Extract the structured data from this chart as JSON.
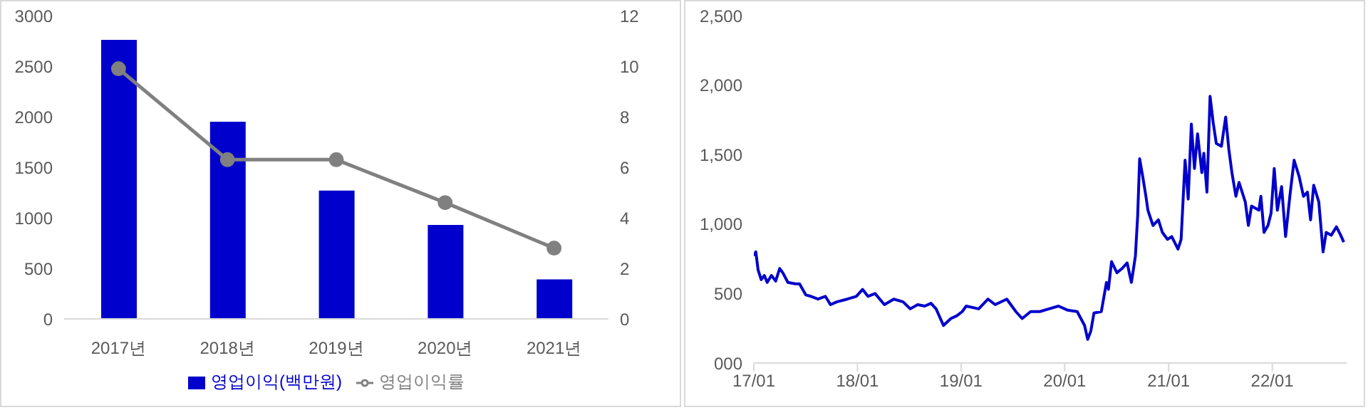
{
  "chart_data": [
    {
      "type": "bar",
      "categories": [
        "2017년",
        "2018년",
        "2019년",
        "2020년",
        "2021년"
      ],
      "series": [
        {
          "name": "영업이익(백만원)",
          "type": "bar",
          "color": "#0000cc",
          "values": [
            2760,
            1950,
            1270,
            930,
            390
          ]
        },
        {
          "name": "영업이익률",
          "type": "line",
          "axis": "y2",
          "color": "#808080",
          "values": [
            9.9,
            6.3,
            6.3,
            4.6,
            2.8
          ]
        }
      ],
      "marker": "circle",
      "ylim": [
        0,
        3000
      ],
      "yticks": [
        0,
        500,
        1000,
        1500,
        2000,
        2500,
        3000
      ],
      "y2lim": [
        0,
        12
      ],
      "y2ticks": [
        0,
        2,
        4,
        6,
        8,
        10,
        12
      ],
      "legend": "bottom"
    },
    {
      "type": "line",
      "color": "#0000cc",
      "xlim": [
        "2017-01-01",
        "2022-09-20"
      ],
      "xticks": [
        {
          "value": "2017-01-01",
          "label": "17/01"
        },
        {
          "value": "2018-01-01",
          "label": "18/01"
        },
        {
          "value": "2019-01-01",
          "label": "19/01"
        },
        {
          "value": "2020-01-01",
          "label": "20/01"
        },
        {
          "value": "2021-01-01",
          "label": "21/01"
        },
        {
          "value": "2022-01-01",
          "label": "22/01"
        }
      ],
      "ylim": [
        0,
        2500
      ],
      "yticks": [
        {
          "value": 0,
          "label": "000"
        },
        500,
        {
          "value": 1000,
          "label": "1,000"
        },
        {
          "value": 1500,
          "label": "1,500"
        },
        {
          "value": 2000,
          "label": "2,000"
        },
        {
          "value": 2500,
          "label": "2,500"
        }
      ],
      "x": [
        "2017-01-02",
        "2017-01-08",
        "2017-01-16",
        "2017-01-27",
        "2017-02-07",
        "2017-02-17",
        "2017-03-04",
        "2017-03-19",
        "2017-04-02",
        "2017-04-13",
        "2017-05-01",
        "2017-05-27",
        "2017-06-11",
        "2017-07-03",
        "2017-07-21",
        "2017-08-15",
        "2017-09-10",
        "2017-09-28",
        "2017-10-20",
        "2017-11-26",
        "2017-12-28",
        "2018-01-19",
        "2018-02-07",
        "2018-03-04",
        "2018-04-06",
        "2018-05-09",
        "2018-06-11",
        "2018-07-06",
        "2018-08-01",
        "2018-08-26",
        "2018-09-17",
        "2018-10-05",
        "2018-10-31",
        "2018-11-26",
        "2018-12-17",
        "2019-01-05",
        "2019-01-19",
        "2019-03-04",
        "2019-04-06",
        "2019-05-01",
        "2019-06-11",
        "2019-07-13",
        "2019-08-04",
        "2019-09-03",
        "2019-10-05",
        "2019-11-07",
        "2019-12-10",
        "2020-01-12",
        "2020-02-14",
        "2020-03-11",
        "2020-03-22",
        "2020-04-02",
        "2020-04-13",
        "2020-05-09",
        "2020-05-27",
        "2020-06-03",
        "2020-06-14",
        "2020-07-03",
        "2020-07-21",
        "2020-08-08",
        "2020-08-23",
        "2020-09-06",
        "2020-09-14",
        "2020-09-21",
        "2020-10-02",
        "2020-10-13",
        "2020-10-20",
        "2020-11-07",
        "2020-11-26",
        "2020-12-10",
        "2020-12-28",
        "2021-01-12",
        "2021-02-03",
        "2021-02-14",
        "2021-02-28",
        "2021-03-11",
        "2021-03-22",
        "2021-04-02",
        "2021-04-13",
        "2021-04-28",
        "2021-05-05",
        "2021-05-16",
        "2021-05-27",
        "2021-06-07",
        "2021-06-18",
        "2021-07-06",
        "2021-07-21",
        "2021-08-01",
        "2021-08-12",
        "2021-08-26",
        "2021-09-06",
        "2021-09-28",
        "2021-10-09",
        "2021-10-20",
        "2021-11-15",
        "2021-11-22",
        "2021-12-03",
        "2021-12-17",
        "2021-12-28",
        "2022-01-08",
        "2022-01-19",
        "2022-02-03",
        "2022-02-17",
        "2022-03-04",
        "2022-03-19",
        "2022-04-06",
        "2022-04-21",
        "2022-05-05",
        "2022-05-16",
        "2022-05-27",
        "2022-06-14",
        "2022-06-29",
        "2022-07-10",
        "2022-07-28",
        "2022-08-15",
        "2022-08-30",
        "2022-09-10"
      ],
      "values": [
        770,
        800,
        670,
        600,
        630,
        580,
        630,
        590,
        680,
        650,
        580,
        570,
        570,
        490,
        480,
        460,
        480,
        420,
        440,
        460,
        480,
        530,
        480,
        500,
        420,
        460,
        440,
        390,
        420,
        410,
        430,
        390,
        270,
        320,
        340,
        370,
        410,
        390,
        460,
        420,
        460,
        370,
        320,
        370,
        370,
        390,
        410,
        380,
        370,
        270,
        170,
        230,
        360,
        370,
        580,
        530,
        730,
        650,
        680,
        720,
        580,
        770,
        1060,
        1470,
        1340,
        1200,
        1100,
        990,
        1030,
        940,
        890,
        910,
        820,
        890,
        1460,
        1180,
        1720,
        1400,
        1650,
        1370,
        1510,
        1230,
        1920,
        1730,
        1580,
        1560,
        1770,
        1540,
        1370,
        1200,
        1300,
        1160,
        990,
        1130,
        1100,
        1200,
        940,
        990,
        1080,
        1400,
        1100,
        1270,
        910,
        1200,
        1460,
        1340,
        1200,
        1230,
        1030,
        1280,
        1160,
        800,
        940,
        920,
        980,
        920,
        870
      ]
    }
  ]
}
